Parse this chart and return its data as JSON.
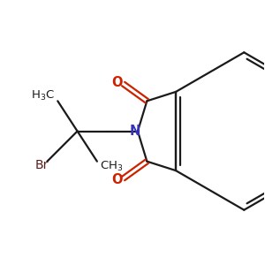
{
  "bg": "#ffffff",
  "bond_color": "#1a1a1a",
  "N_color": "#3333bb",
  "O_color": "#cc2200",
  "Br_color": "#5c1a1a",
  "lw": 1.6,
  "figsize": [
    3.0,
    3.0
  ],
  "dpi": 100,
  "xlim": [
    0,
    10
  ],
  "ylim": [
    0,
    10
  ],
  "Nx": 5.2,
  "Ny": 5.05,
  "C1x": 5.55,
  "C1y": 6.2,
  "C3x": 5.55,
  "C3y": 3.9,
  "C3ax": 6.65,
  "C3ay": 6.55,
  "C7ax": 6.65,
  "C7ay": 3.55,
  "O1x": 4.65,
  "O1y": 6.85,
  "O3x": 4.65,
  "O3y": 3.25,
  "CH2x": 4.05,
  "CH2y": 5.05,
  "Qx": 2.9,
  "Qy": 5.05,
  "Me1x": 2.15,
  "Me1y": 6.2,
  "Me2x": 3.65,
  "Me2y": 3.9,
  "BrCx": 1.75,
  "BrCy": 3.9,
  "font_size": 9.5
}
